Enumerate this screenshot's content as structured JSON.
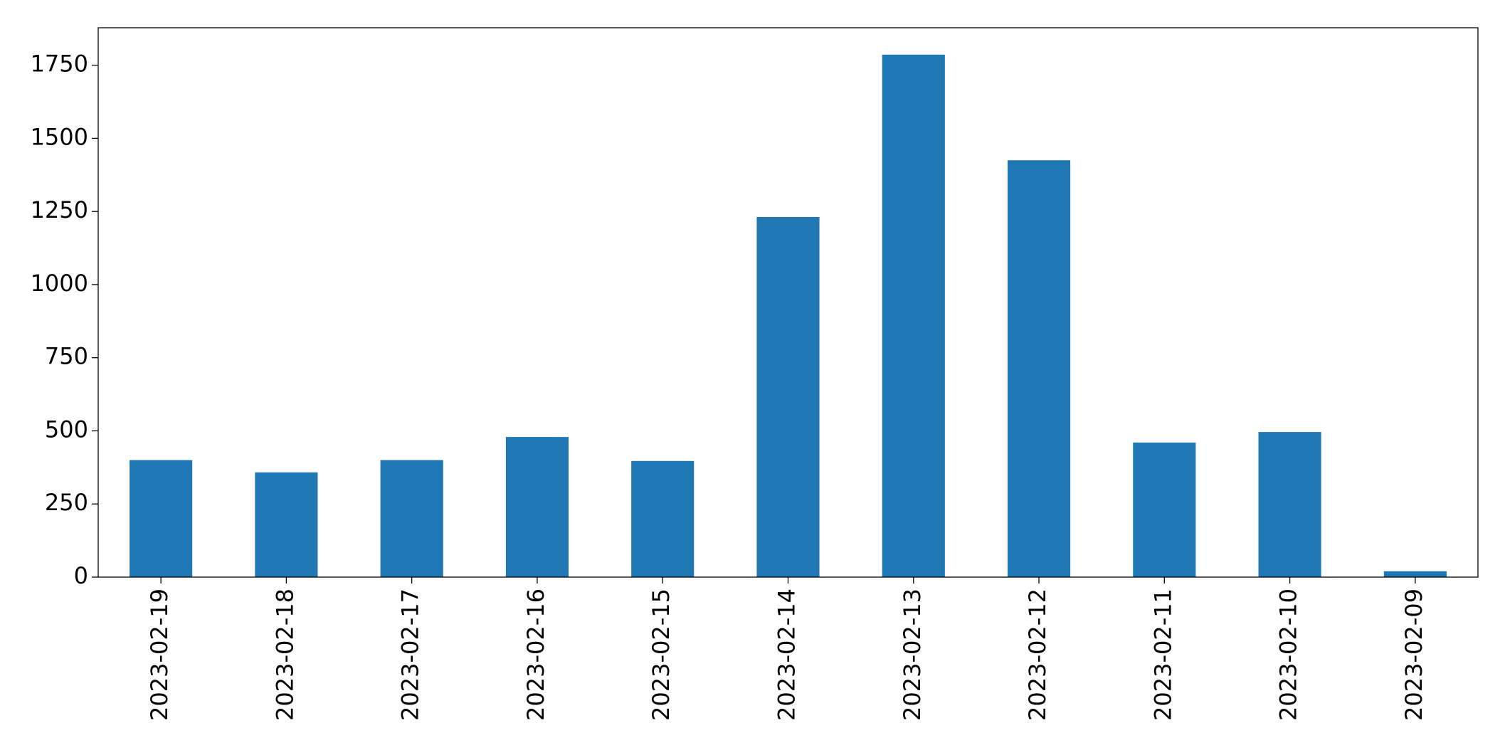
{
  "chart_data": {
    "type": "bar",
    "categories": [
      "2023-02-19",
      "2023-02-18",
      "2023-02-17",
      "2023-02-16",
      "2023-02-15",
      "2023-02-14",
      "2023-02-13",
      "2023-02-12",
      "2023-02-11",
      "2023-02-10",
      "2023-02-09"
    ],
    "values": [
      400,
      358,
      400,
      479,
      397,
      1231,
      1786,
      1425,
      460,
      496,
      20
    ],
    "color": "#1f77b4",
    "ylim": [
      0,
      1878
    ],
    "yticks": [
      0,
      250,
      500,
      750,
      1000,
      1250,
      1500,
      1750
    ],
    "grid": false
  }
}
